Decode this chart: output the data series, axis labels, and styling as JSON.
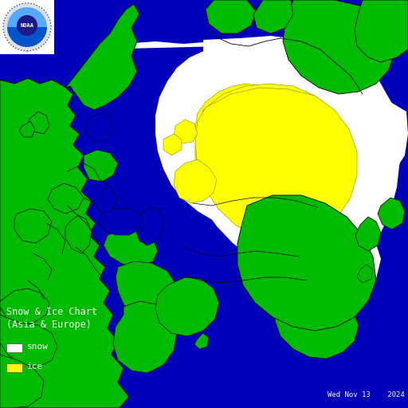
{
  "title": "Snow & Ice Chart\n(Asia & Europe)",
  "legend_items": [
    {
      "label": "snow",
      "color": "#ffffff"
    },
    {
      "label": "ice",
      "color": "#ffff00"
    }
  ],
  "date_text": "Wed Nov 13    2024",
  "ocean_color": "#0000bb",
  "land_color": "#00bb00",
  "snow_color": "#ffffff",
  "ice_color": "#ffff00",
  "text_color": "#ffffff",
  "fig_width": 5.12,
  "fig_height": 5.12,
  "dpi": 100
}
